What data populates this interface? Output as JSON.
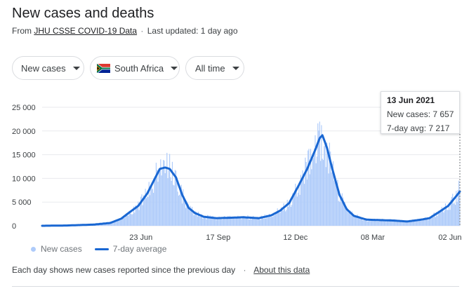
{
  "header": {
    "title": "New cases and deaths",
    "source_prefix": "From",
    "source_link": "JHU CSSE COVID-19 Data",
    "separator": "·",
    "updated": "Last updated: 1 day ago"
  },
  "filters": {
    "metric": "New cases",
    "country": "South Africa",
    "range": "All time"
  },
  "tooltip": {
    "date": "13 Jun 2021",
    "cases_label": "New cases:",
    "cases_value": "7 657",
    "avg_label": "7-day avg:",
    "avg_value": "7 217"
  },
  "legend": {
    "bars_label": "New cases",
    "line_label": "7-day average"
  },
  "footer": {
    "note": "Each day shows new cases reported since the previous day",
    "separator": "·",
    "link": "About this data"
  },
  "colors": {
    "bars": "#aecbfa",
    "average": "#1967d2",
    "gridline": "#e8eaed"
  },
  "chart_data": {
    "type": "bar",
    "x_label_positions_note": "daily bars with 7-day average line",
    "x_ticks": [
      {
        "label": "23 Jun",
        "date": "2020-06-23"
      },
      {
        "label": "17 Sep",
        "date": "2020-09-17"
      },
      {
        "label": "12 Dec",
        "date": "2020-12-12"
      },
      {
        "label": "08 Mar",
        "date": "2021-03-08"
      },
      {
        "label": "02 Jun",
        "date": "2021-06-02"
      }
    ],
    "y_ticks": [
      "0",
      "5 000",
      "10 000",
      "15 000",
      "20 000",
      "25 000"
    ],
    "ylim": [
      0,
      25000
    ],
    "x_start": "2020-03-05",
    "x_end": "2021-06-13",
    "grid": true,
    "legend_position": "bottom-left",
    "series": [
      {
        "name": "7-day average",
        "type": "line",
        "points": [
          [
            "2020-03-05",
            0
          ],
          [
            "2020-04-01",
            60
          ],
          [
            "2020-05-01",
            250
          ],
          [
            "2020-05-20",
            600
          ],
          [
            "2020-06-01",
            1500
          ],
          [
            "2020-06-10",
            2800
          ],
          [
            "2020-06-20",
            4200
          ],
          [
            "2020-06-30",
            6800
          ],
          [
            "2020-07-08",
            9800
          ],
          [
            "2020-07-14",
            12000
          ],
          [
            "2020-07-20",
            12300
          ],
          [
            "2020-07-25",
            12000
          ],
          [
            "2020-08-01",
            10200
          ],
          [
            "2020-08-08",
            6500
          ],
          [
            "2020-08-15",
            3800
          ],
          [
            "2020-08-22",
            2700
          ],
          [
            "2020-09-01",
            1900
          ],
          [
            "2020-09-15",
            1600
          ],
          [
            "2020-10-01",
            1700
          ],
          [
            "2020-10-15",
            1800
          ],
          [
            "2020-11-01",
            1600
          ],
          [
            "2020-11-15",
            2200
          ],
          [
            "2020-11-25",
            3200
          ],
          [
            "2020-12-05",
            4800
          ],
          [
            "2020-12-15",
            8300
          ],
          [
            "2020-12-25",
            12000
          ],
          [
            "2021-01-03",
            16000
          ],
          [
            "2021-01-08",
            18500
          ],
          [
            "2021-01-11",
            19100
          ],
          [
            "2021-01-16",
            16500
          ],
          [
            "2021-01-22",
            12000
          ],
          [
            "2021-01-30",
            6500
          ],
          [
            "2021-02-07",
            3500
          ],
          [
            "2021-02-15",
            2100
          ],
          [
            "2021-03-01",
            1300
          ],
          [
            "2021-03-15",
            1200
          ],
          [
            "2021-04-01",
            1100
          ],
          [
            "2021-04-15",
            900
          ],
          [
            "2021-05-01",
            1300
          ],
          [
            "2021-05-10",
            1600
          ],
          [
            "2021-05-20",
            2800
          ],
          [
            "2021-05-31",
            4200
          ],
          [
            "2021-06-07",
            5800
          ],
          [
            "2021-06-13",
            7217
          ]
        ]
      },
      {
        "name": "New cases",
        "type": "bar",
        "peaks": [
          [
            "2020-07-18",
            13900
          ],
          [
            "2020-07-10",
            13300
          ],
          [
            "2021-01-08",
            21980
          ],
          [
            "2021-01-06",
            21600
          ],
          [
            "2021-01-13",
            16800
          ],
          [
            "2021-06-12",
            9500
          ],
          [
            "2021-06-13",
            7657
          ]
        ]
      }
    ]
  }
}
